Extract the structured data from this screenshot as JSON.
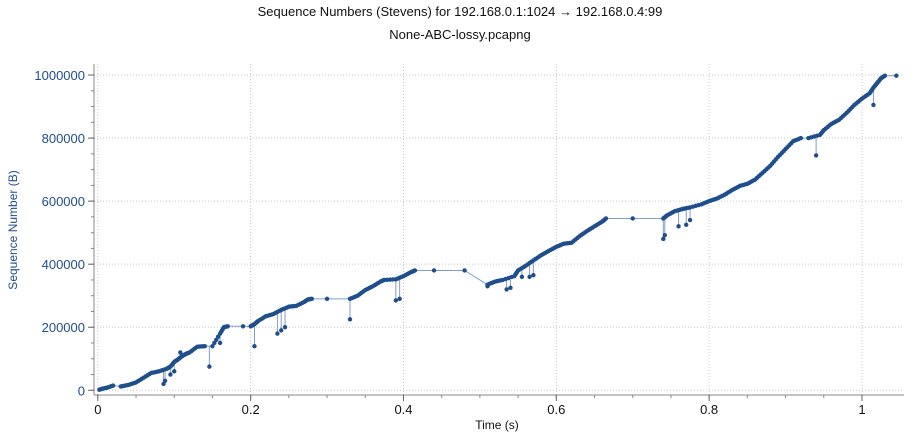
{
  "chart_data": {
    "type": "scatter",
    "title": "Sequence Numbers (Stevens) for 192.168.0.1:1024 → 192.168.0.4:99",
    "subtitle": "None-ABC-lossy.pcapng",
    "xlabel": "Time (s)",
    "ylabel": "Sequence Number (B)",
    "xlim": [
      -0.005,
      1.055
    ],
    "ylim": [
      -15000,
      1035000
    ],
    "x_ticks": [
      0,
      0.2,
      0.4,
      0.6,
      0.8,
      1
    ],
    "x_tick_labels": [
      "0",
      "0.2",
      "0.4",
      "0.6",
      "0.8",
      "1"
    ],
    "y_ticks": [
      0,
      200000,
      400000,
      600000,
      800000,
      1000000
    ],
    "y_tick_labels": [
      "0",
      "200000",
      "400000",
      "600000",
      "800000",
      "1000000"
    ],
    "grid": true,
    "colors": {
      "points": "#1f4e8c",
      "line": "#7f9ec4",
      "ylabel": "#1f4e8c"
    },
    "series": [
      {
        "points": [
          [
            0.002,
            2000
          ],
          [
            0.006,
            5000
          ],
          [
            0.012,
            8000
          ],
          [
            0.02,
            15000
          ],
          [
            0.03,
            12000
          ],
          [
            0.04,
            17000
          ],
          [
            0.05,
            25000
          ],
          [
            0.06,
            40000
          ],
          [
            0.07,
            55000
          ],
          [
            0.08,
            60000
          ],
          [
            0.09,
            68000
          ],
          [
            0.095,
            75000
          ],
          [
            0.1,
            90000
          ],
          [
            0.105,
            98000
          ],
          [
            0.11,
            108000
          ],
          [
            0.115,
            115000
          ],
          [
            0.12,
            120000
          ],
          [
            0.13,
            138000
          ],
          [
            0.14,
            140000
          ],
          [
            0.15,
            140000
          ],
          [
            0.16,
            180000
          ],
          [
            0.165,
            200000
          ],
          [
            0.17,
            203000
          ],
          [
            0.19,
            203000
          ],
          [
            0.2,
            203000
          ],
          [
            0.205,
            210000
          ],
          [
            0.21,
            220000
          ],
          [
            0.22,
            235000
          ],
          [
            0.23,
            242000
          ],
          [
            0.24,
            255000
          ],
          [
            0.25,
            265000
          ],
          [
            0.26,
            268000
          ],
          [
            0.27,
            280000
          ],
          [
            0.275,
            288000
          ],
          [
            0.28,
            290000
          ],
          [
            0.3,
            290000
          ],
          [
            0.33,
            290000
          ],
          [
            0.34,
            300000
          ],
          [
            0.35,
            318000
          ],
          [
            0.36,
            330000
          ],
          [
            0.37,
            345000
          ],
          [
            0.375,
            350000
          ],
          [
            0.39,
            352000
          ],
          [
            0.4,
            362000
          ],
          [
            0.41,
            375000
          ],
          [
            0.415,
            380000
          ],
          [
            0.44,
            380000
          ],
          [
            0.48,
            380000
          ],
          [
            0.51,
            335000
          ],
          [
            0.52,
            345000
          ],
          [
            0.53,
            350000
          ],
          [
            0.545,
            362000
          ],
          [
            0.55,
            380000
          ],
          [
            0.56,
            395000
          ],
          [
            0.57,
            412000
          ],
          [
            0.58,
            428000
          ],
          [
            0.59,
            442000
          ],
          [
            0.6,
            455000
          ],
          [
            0.61,
            465000
          ],
          [
            0.62,
            468000
          ],
          [
            0.63,
            488000
          ],
          [
            0.64,
            505000
          ],
          [
            0.65,
            520000
          ],
          [
            0.66,
            535000
          ],
          [
            0.665,
            545000
          ],
          [
            0.7,
            545000
          ],
          [
            0.74,
            545000
          ],
          [
            0.745,
            555000
          ],
          [
            0.755,
            568000
          ],
          [
            0.765,
            575000
          ],
          [
            0.775,
            580000
          ],
          [
            0.79,
            590000
          ],
          [
            0.8,
            600000
          ],
          [
            0.81,
            608000
          ],
          [
            0.82,
            620000
          ],
          [
            0.83,
            635000
          ],
          [
            0.84,
            648000
          ],
          [
            0.85,
            655000
          ],
          [
            0.86,
            668000
          ],
          [
            0.87,
            690000
          ],
          [
            0.88,
            712000
          ],
          [
            0.89,
            740000
          ],
          [
            0.9,
            765000
          ],
          [
            0.91,
            790000
          ],
          [
            0.92,
            800000
          ],
          [
            0.93,
            800000
          ],
          [
            0.945,
            810000
          ],
          [
            0.95,
            825000
          ],
          [
            0.96,
            845000
          ],
          [
            0.97,
            858000
          ],
          [
            0.98,
            880000
          ],
          [
            0.99,
            905000
          ],
          [
            1.0,
            925000
          ],
          [
            1.01,
            942000
          ],
          [
            1.015,
            960000
          ],
          [
            1.02,
            975000
          ],
          [
            1.025,
            990000
          ],
          [
            1.03,
            998000
          ],
          [
            1.045,
            998000
          ]
        ],
        "retransmissions": [
          [
            0.086,
            20000
          ],
          [
            0.088,
            30000
          ],
          [
            0.095,
            50000
          ],
          [
            0.1,
            60000
          ],
          [
            0.108,
            120000
          ],
          [
            0.146,
            75000
          ],
          [
            0.16,
            150000
          ],
          [
            0.205,
            140000
          ],
          [
            0.235,
            180000
          ],
          [
            0.24,
            190000
          ],
          [
            0.245,
            200000
          ],
          [
            0.33,
            225000
          ],
          [
            0.39,
            285000
          ],
          [
            0.395,
            290000
          ],
          [
            0.51,
            330000
          ],
          [
            0.535,
            320000
          ],
          [
            0.54,
            325000
          ],
          [
            0.555,
            360000
          ],
          [
            0.565,
            360000
          ],
          [
            0.57,
            365000
          ],
          [
            0.74,
            480000
          ],
          [
            0.742,
            492000
          ],
          [
            0.76,
            520000
          ],
          [
            0.77,
            525000
          ],
          [
            0.775,
            540000
          ],
          [
            0.94,
            745000
          ],
          [
            1.015,
            905000
          ]
        ]
      }
    ]
  }
}
